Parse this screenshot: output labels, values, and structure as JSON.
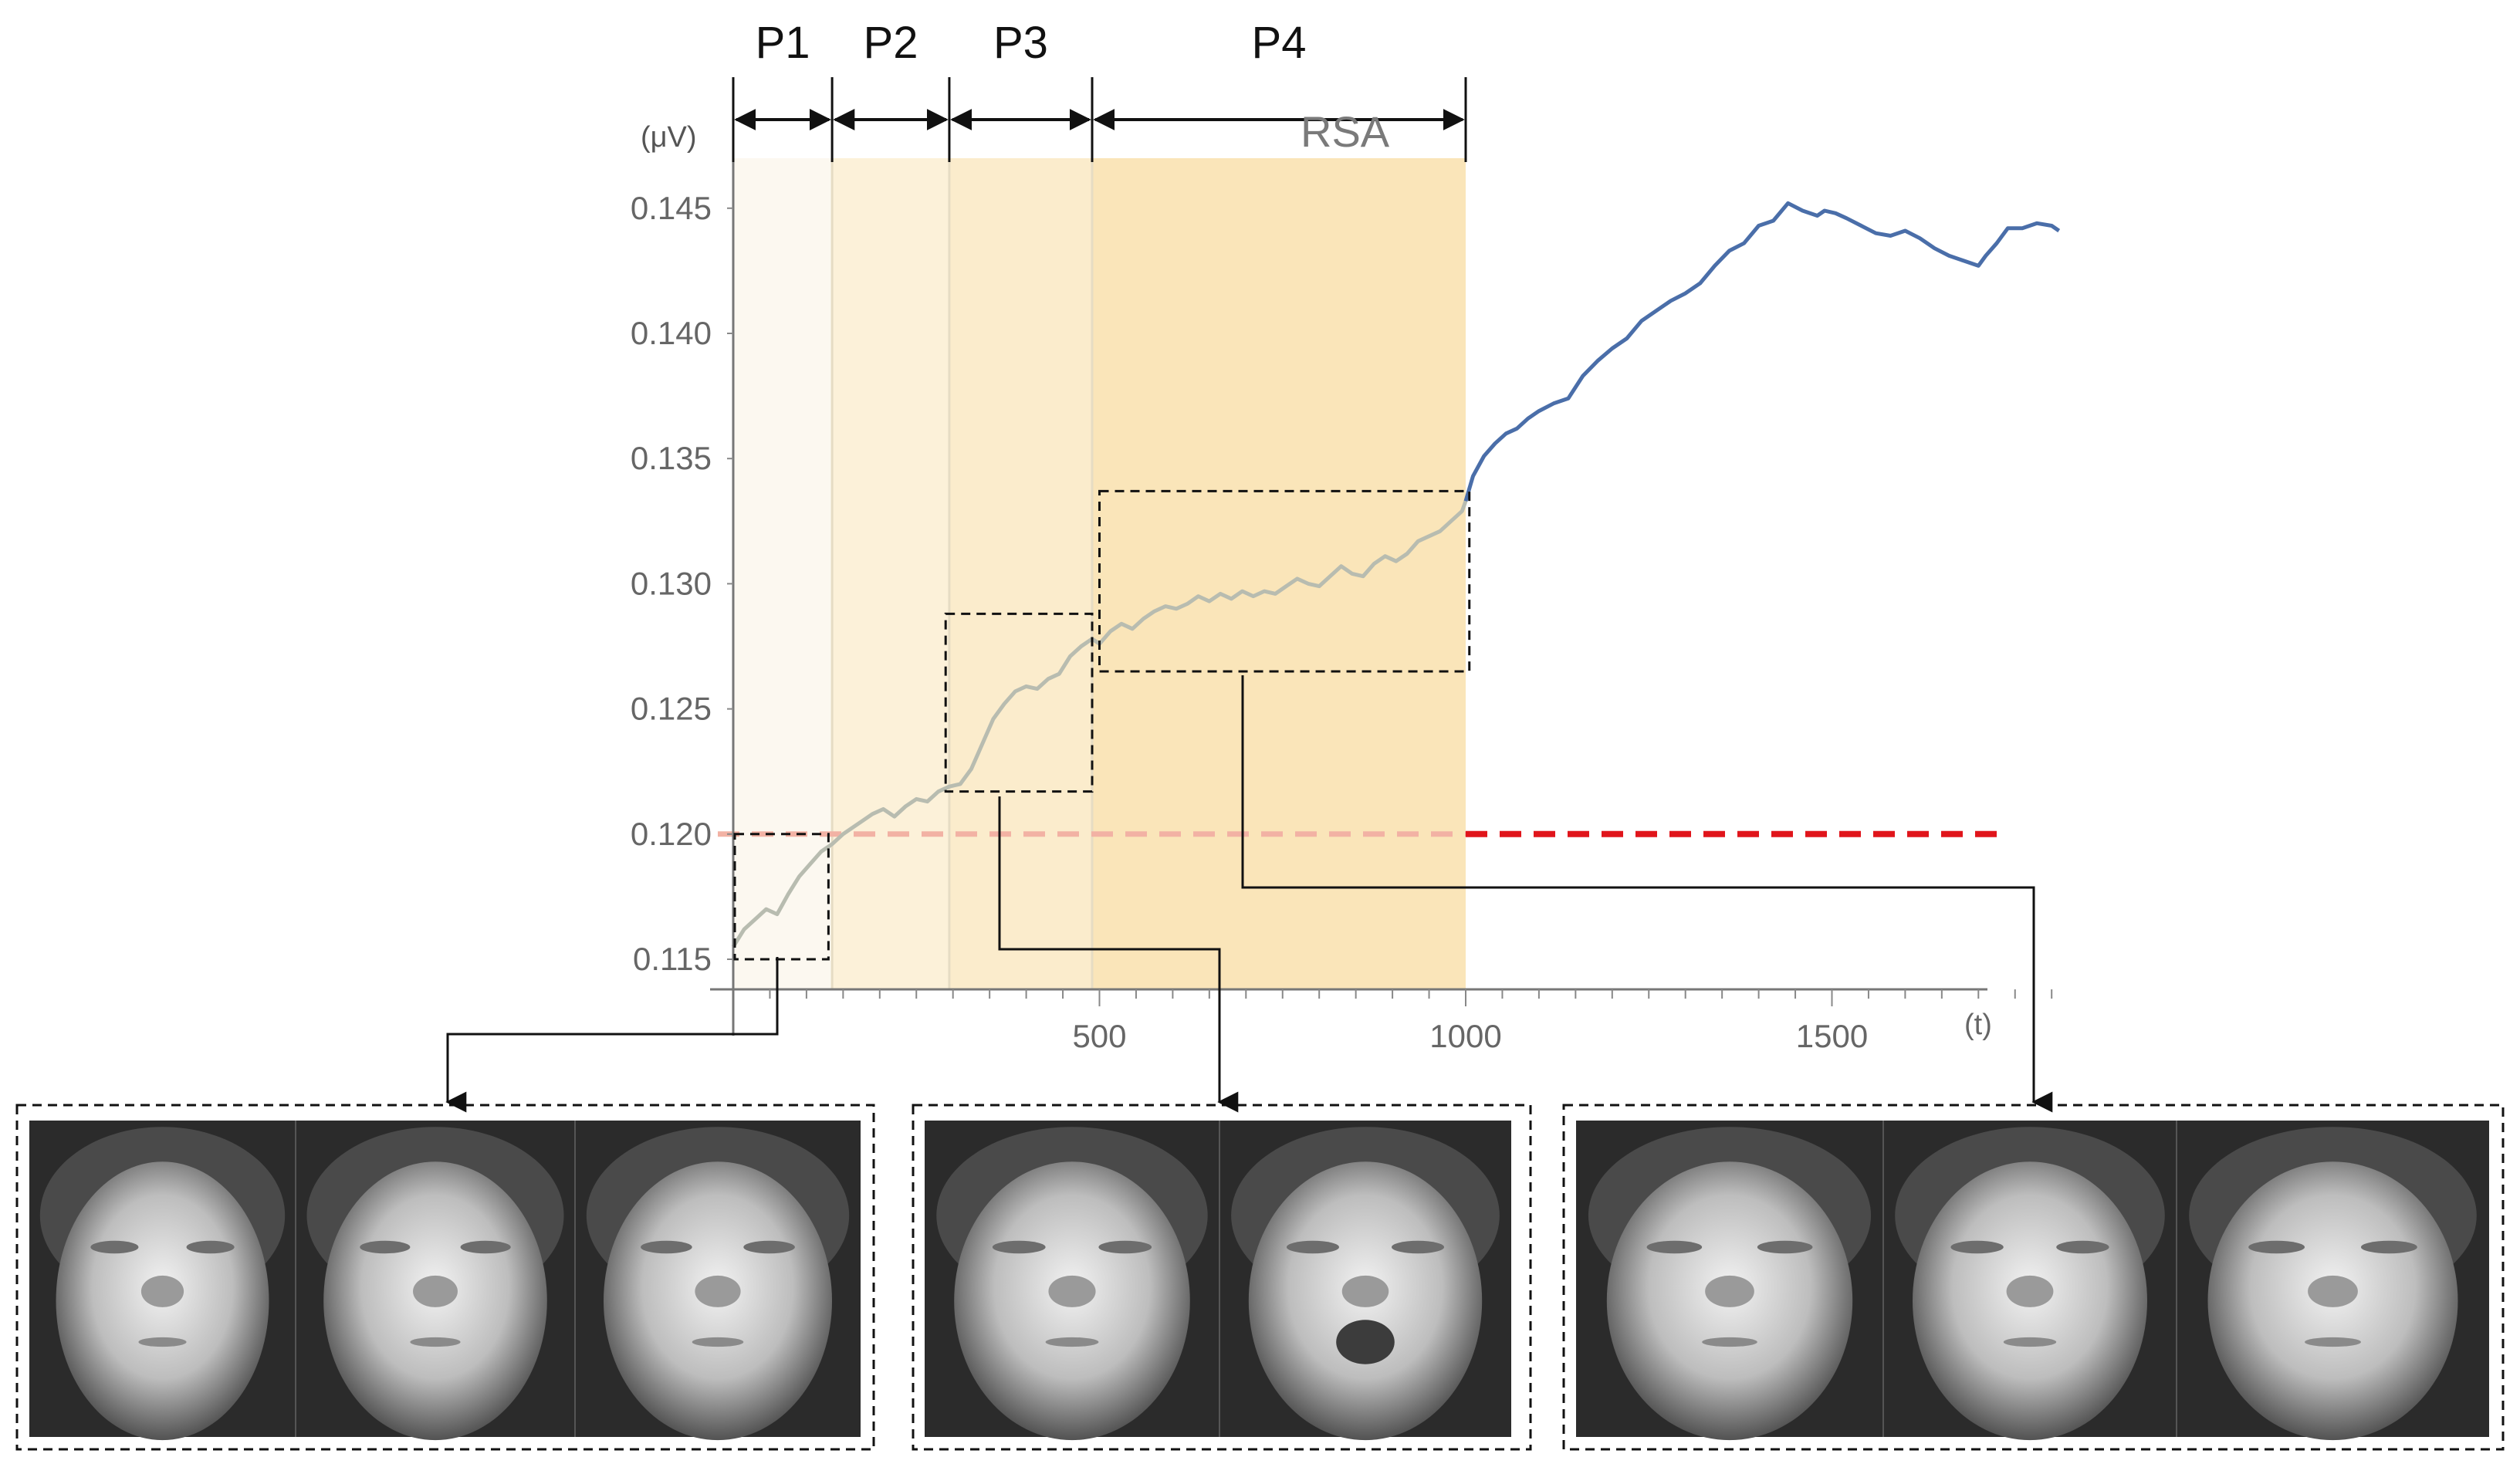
{
  "chart_data": {
    "type": "line",
    "title": "",
    "xlabel": "",
    "ylabel": "",
    "y_unit_label": "(μV)",
    "x_unit_label": "(t)",
    "xlim": [
      0,
      1840
    ],
    "ylim": [
      0.1138,
      0.1472
    ],
    "x_ticks": [
      {
        "value": 500,
        "label": "500"
      },
      {
        "value": 1000,
        "label": "1000"
      },
      {
        "value": 1500,
        "label": "1500"
      }
    ],
    "y_ticks": [
      {
        "value": 0.115,
        "label": "0.115"
      },
      {
        "value": 0.12,
        "label": "0.120"
      },
      {
        "value": 0.125,
        "label": "0.125"
      },
      {
        "value": 0.13,
        "label": "0.130"
      },
      {
        "value": 0.135,
        "label": "0.135"
      },
      {
        "value": 0.14,
        "label": "0.140"
      },
      {
        "value": 0.145,
        "label": "0.145"
      }
    ],
    "threshold": {
      "value": 0.12,
      "style": "dashed",
      "color": "#e0151b"
    },
    "line_color": "#4a6ea9",
    "faded_line_color": "#b8bcb0",
    "series": [
      {
        "x": [
          0,
          15,
          30,
          45,
          60,
          75,
          90,
          105,
          120,
          135,
          150,
          160,
          175,
          190,
          205,
          220,
          235,
          250,
          265,
          280,
          295,
          310,
          325,
          340,
          355,
          370,
          385,
          400,
          415,
          430,
          445,
          460,
          475,
          490,
          500,
          515,
          530,
          545,
          560,
          575,
          590,
          605,
          620,
          635,
          650,
          665,
          680,
          695,
          710,
          725,
          740,
          755,
          770,
          785,
          800,
          815,
          830,
          845,
          860,
          875,
          890,
          905,
          920,
          935,
          950,
          965,
          980,
          995,
          1000,
          1010,
          1025,
          1040,
          1055,
          1070,
          1085,
          1100,
          1120,
          1140,
          1160,
          1180,
          1200,
          1220,
          1240,
          1260,
          1280,
          1300,
          1320,
          1340,
          1360,
          1380,
          1400,
          1420,
          1440,
          1460,
          1480,
          1490,
          1505,
          1520,
          1540,
          1560,
          1580,
          1600,
          1620,
          1640,
          1660,
          1680,
          1700,
          1710,
          1725,
          1740,
          1760,
          1780,
          1800,
          1810
        ],
        "y": [
          0.1155,
          0.1162,
          0.1166,
          0.117,
          0.1168,
          0.1176,
          0.1183,
          0.1188,
          0.1193,
          0.1196,
          0.12,
          0.1202,
          0.1205,
          0.1208,
          0.121,
          0.1207,
          0.1211,
          0.1214,
          0.1213,
          0.1217,
          0.1219,
          0.122,
          0.1226,
          0.1236,
          0.1246,
          0.1252,
          0.1257,
          0.1259,
          0.1258,
          0.1262,
          0.1264,
          0.1271,
          0.1275,
          0.1278,
          0.1276,
          0.1281,
          0.1284,
          0.1282,
          0.1286,
          0.1289,
          0.1291,
          0.129,
          0.1292,
          0.1295,
          0.1293,
          0.1296,
          0.1294,
          0.1297,
          0.1295,
          0.1297,
          0.1296,
          0.1299,
          0.1302,
          0.13,
          0.1299,
          0.1303,
          0.1307,
          0.1304,
          0.1303,
          0.1308,
          0.1311,
          0.1309,
          0.1312,
          0.1317,
          0.1319,
          0.1321,
          0.1325,
          0.1329,
          0.1333,
          0.1343,
          0.1351,
          0.1356,
          0.136,
          0.1362,
          0.1366,
          0.1369,
          0.1372,
          0.1374,
          0.1383,
          0.1389,
          0.1394,
          0.1398,
          0.1405,
          0.1409,
          0.1413,
          0.1416,
          0.142,
          0.1427,
          0.1433,
          0.1436,
          0.1443,
          0.1445,
          0.1452,
          0.1449,
          0.1447,
          0.1449,
          0.1448,
          0.1446,
          0.1443,
          0.144,
          0.1439,
          0.1441,
          0.1438,
          0.1434,
          0.1431,
          0.1429,
          0.1427,
          0.1431,
          0.1436,
          0.1442,
          0.1442,
          0.1444,
          0.1443,
          0.1441
        ]
      }
    ],
    "phases": [
      {
        "label": "P1",
        "x_start": 0,
        "x_end": 135,
        "color": "#fcf8f0"
      },
      {
        "label": "P2",
        "x_start": 135,
        "x_end": 295,
        "color": "#fcf1d9"
      },
      {
        "label": "P3",
        "x_start": 295,
        "x_end": 490,
        "color": "#fbeccc"
      },
      {
        "label": "P4",
        "x_start": 490,
        "x_end": 1000,
        "color": "#fae5b9"
      }
    ],
    "rsa_label": "RSA",
    "zoom_boxes": [
      {
        "x_start": 0,
        "x_end": 130,
        "y_min": 0.115,
        "y_max": 0.12,
        "panel": 0
      },
      {
        "x_start": 290,
        "x_end": 490,
        "y_min": 0.1217,
        "y_max": 0.1288,
        "panel": 1
      },
      {
        "x_start": 500,
        "x_end": 1005,
        "y_min": 0.1265,
        "y_max": 0.1337,
        "panel": 2
      }
    ],
    "image_panels": [
      {
        "frames": 3,
        "description_icon": "face-photo"
      },
      {
        "frames": 2,
        "description_icon": "face-photo"
      },
      {
        "frames": 3,
        "description_icon": "face-photo"
      }
    ]
  }
}
